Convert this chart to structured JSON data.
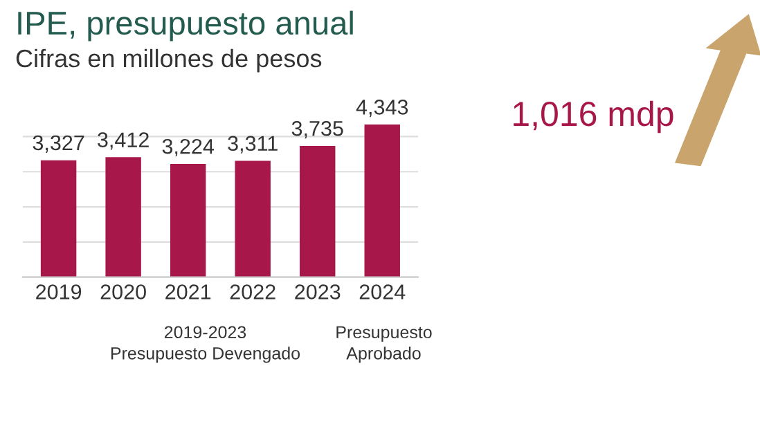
{
  "chart_data": {
    "type": "bar",
    "title": "IPE, presupuesto anual",
    "subtitle": "Cifras en millones de pesos",
    "categories": [
      "2019",
      "2020",
      "2021",
      "2022",
      "2023",
      "2024"
    ],
    "values": [
      3327,
      3412,
      3224,
      3311,
      3735,
      4343
    ],
    "value_labels": [
      "3,327",
      "3,412",
      "3,224",
      "3,311",
      "3,735",
      "4,343"
    ],
    "color": "#a8174a",
    "yticks": [
      {
        "value": 0,
        "label": null
      },
      {
        "value": 1000,
        "label": null
      },
      {
        "value": 2000,
        "label": null
      },
      {
        "value": 3000,
        "label": null
      },
      {
        "value": 4000,
        "label": null
      }
    ],
    "grid": "y",
    "tick_labels": "x",
    "annotations": [
      "2019-2023\nPresupuesto Devengado",
      "Presupuesto\nAprobado",
      "1,016 mdp"
    ]
  }
}
